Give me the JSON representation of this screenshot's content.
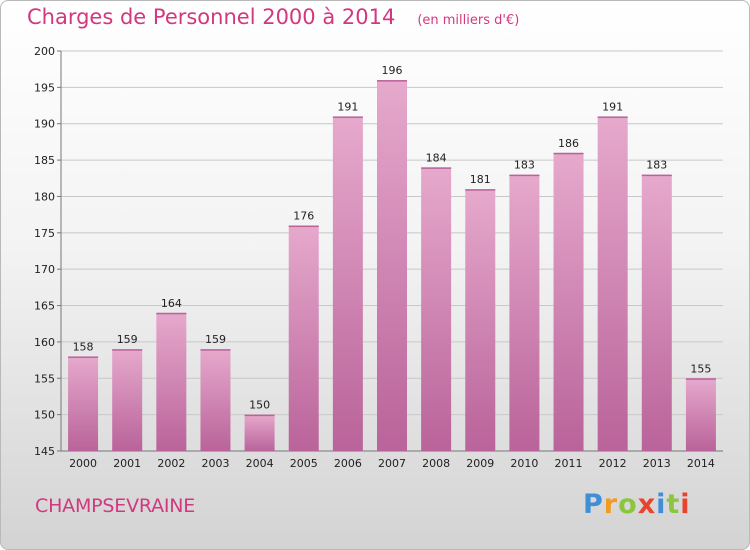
{
  "header": {
    "title": "Charges de Personnel 2000 à 2014",
    "unit": "(en milliers d'€)"
  },
  "footer": {
    "commune": "CHAMPSEVRAINE",
    "brand_letters": [
      "P",
      "r",
      "o",
      "x",
      "i",
      "t",
      "i"
    ],
    "brand_colors": [
      "#3f8fd8",
      "#f39a1f",
      "#8cc63e",
      "#e8432f",
      "#3f8fd8",
      "#8cc63e",
      "#e8432f"
    ]
  },
  "colors": {
    "bar": "#d78cb6",
    "bar_light": "#e6a9cc",
    "bar_dark": "#b9639a",
    "accent": "#d2387f",
    "grid": "#c8c8c8"
  },
  "chart_data": {
    "type": "bar",
    "title": "Charges de Personnel 2000 à 2014",
    "subtitle": "(en milliers d'€)",
    "categories": [
      "2000",
      "2001",
      "2002",
      "2003",
      "2004",
      "2005",
      "2006",
      "2007",
      "2008",
      "2009",
      "2010",
      "2011",
      "2012",
      "2013",
      "2014"
    ],
    "values": [
      158,
      159,
      164,
      159,
      150,
      176,
      191,
      196,
      184,
      181,
      183,
      186,
      191,
      183,
      155
    ],
    "ylim": [
      145,
      200
    ],
    "yticks": [
      145,
      150,
      155,
      160,
      165,
      170,
      175,
      180,
      185,
      190,
      195,
      200
    ],
    "grid": true,
    "data_labels": true
  }
}
